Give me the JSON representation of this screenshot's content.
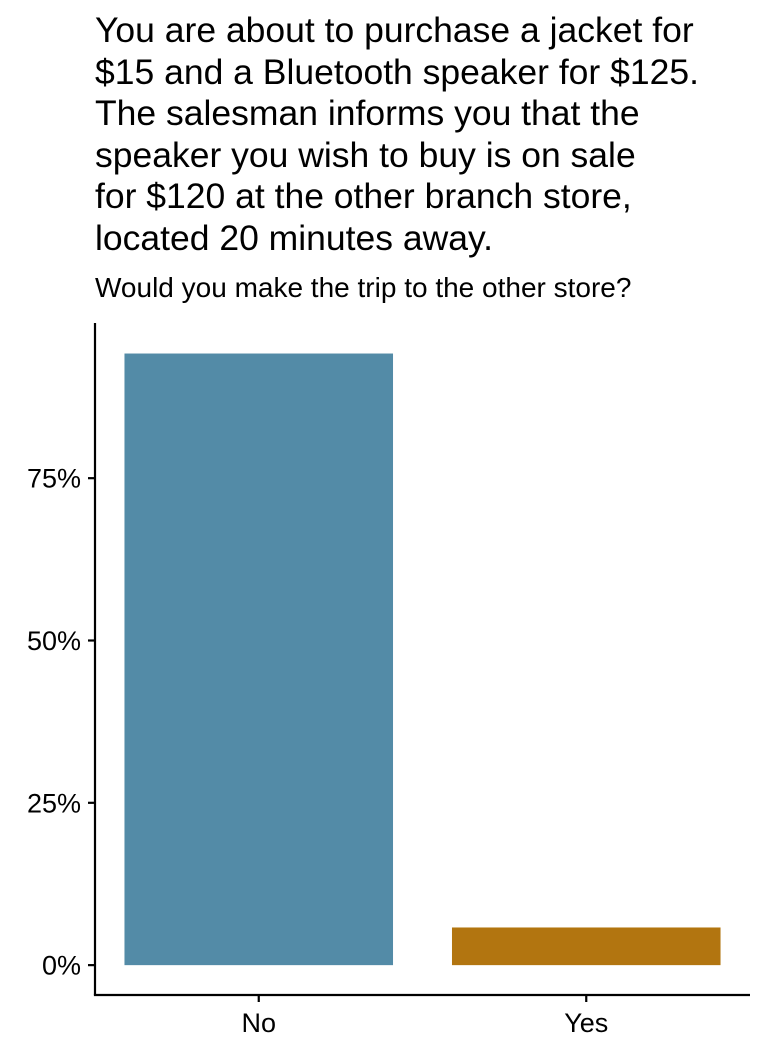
{
  "chart_data": {
    "type": "bar",
    "title": "You are about to purchase a jacket for\n$15 and a Bluetooth speaker for $125.\nThe salesman informs you that the\nspeaker you wish to buy is on sale\nfor $120 at the other branch store,\nlocated 20 minutes away.",
    "subtitle": "Would you make the trip to the other store?",
    "xlabel": "",
    "ylabel": "",
    "categories": [
      "No",
      "Yes"
    ],
    "values": [
      94.2,
      5.8
    ],
    "colors": [
      "#538ba7",
      "#b27510"
    ],
    "ylim": [
      -4.6,
      98.9
    ],
    "yticks": [
      0,
      25,
      50,
      75
    ],
    "ytick_labels": [
      "0%",
      "25%",
      "50%",
      "75%"
    ],
    "grid": false,
    "legend": "none"
  }
}
